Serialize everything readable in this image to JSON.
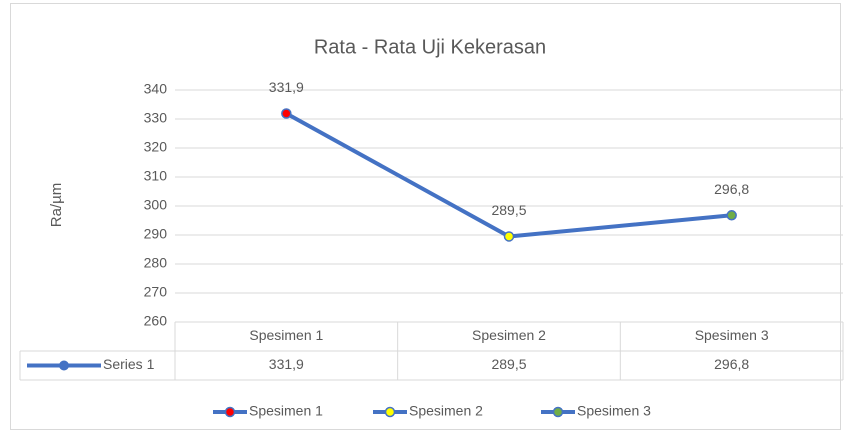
{
  "chart_data": {
    "type": "line",
    "title": "Rata - Rata Uji Kekerasan",
    "y_label": "Ra/µm",
    "categories": [
      "Spesimen  1",
      "Spesimen 2",
      "Spesimen 3"
    ],
    "series": [
      {
        "name": "Series 1",
        "color": "#4472c4",
        "values": [
          331.9,
          289.5,
          296.8
        ],
        "value_labels": [
          "331,9",
          "289,5",
          "296,8"
        ],
        "point_colors": [
          "#ff0000",
          "#ffff00",
          "#70ad47"
        ]
      }
    ],
    "ylim": [
      260,
      340
    ],
    "yticks": [
      260,
      270,
      280,
      290,
      300,
      310,
      320,
      330,
      340
    ],
    "grid": true,
    "data_table": true,
    "legend": "bottom"
  }
}
